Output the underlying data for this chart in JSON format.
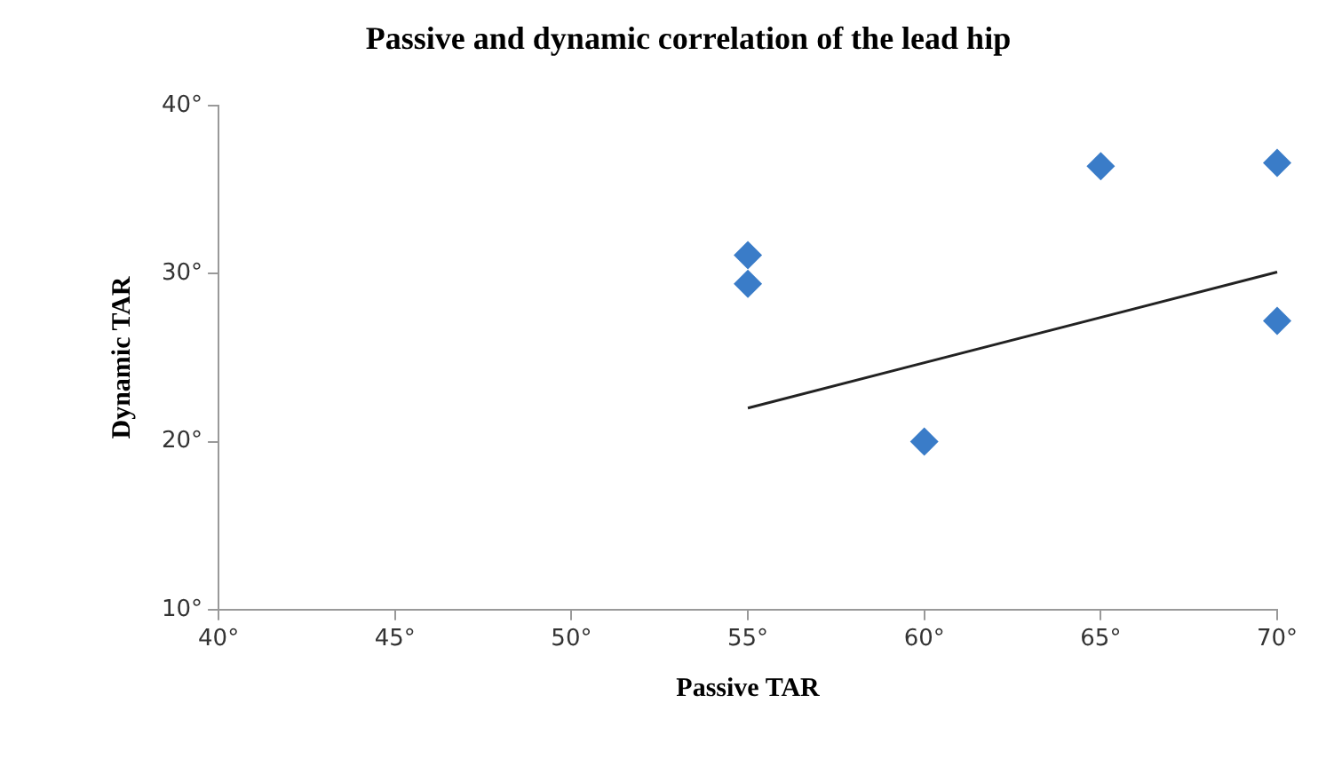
{
  "chart_data": {
    "type": "scatter",
    "title": "Passive and dynamic correlation of the lead hip",
    "xlabel": "Passive TAR",
    "ylabel": "Dynamic TAR",
    "xlim": [
      40,
      70
    ],
    "xticks": [
      {
        "value": 40,
        "label": "40°"
      },
      {
        "value": 45,
        "label": "45°"
      },
      {
        "value": 50,
        "label": "50°"
      },
      {
        "value": 55,
        "label": "55°"
      },
      {
        "value": 60,
        "label": "60°"
      },
      {
        "value": 65,
        "label": "65°"
      },
      {
        "value": 70,
        "label": "70°"
      }
    ],
    "ylim": [
      10,
      40
    ],
    "yticks": [
      {
        "value": 10,
        "label": "10°"
      },
      {
        "value": 20,
        "label": "20°"
      },
      {
        "value": 30,
        "label": "30°"
      },
      {
        "value": 40,
        "label": "40°"
      }
    ],
    "grid": false,
    "legend": false,
    "marker": "diamond",
    "series": [
      {
        "color": "#3a7cc8",
        "x": [
          55,
          55,
          60,
          65,
          70,
          70
        ],
        "values": [
          31.1,
          29.4,
          20.0,
          36.4,
          36.6,
          27.2
        ]
      },
      {
        "type": "line",
        "color": "#222222",
        "marker": "none",
        "line_style": "solid",
        "x": [
          55,
          70
        ],
        "values": [
          22.0,
          30.1
        ]
      }
    ]
  }
}
